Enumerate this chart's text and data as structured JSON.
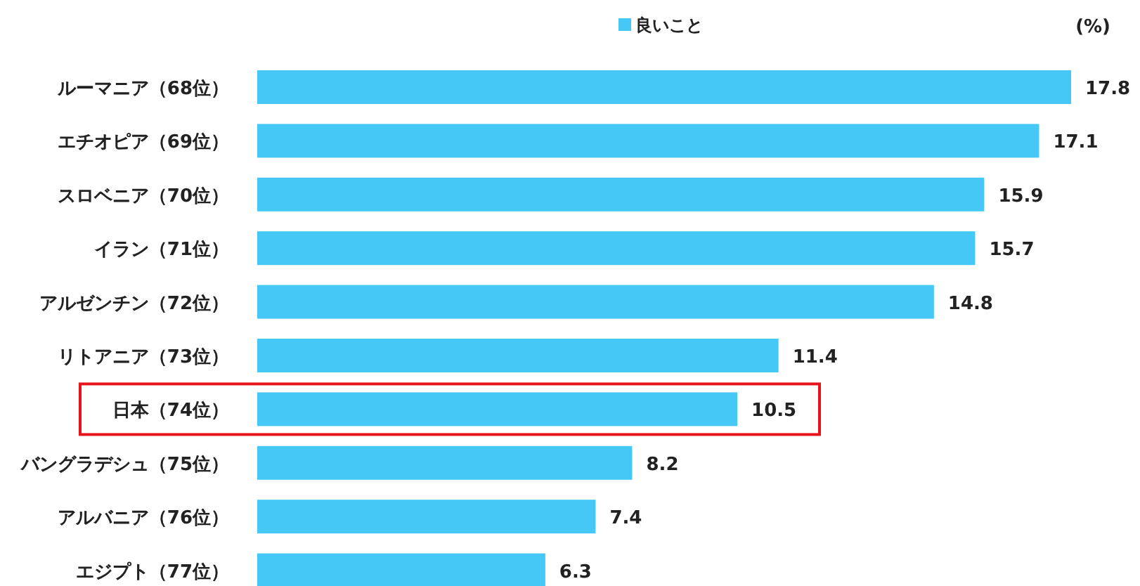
{
  "chart_data": {
    "type": "bar",
    "orientation": "horizontal",
    "categories": [
      "ルーマニア（68位）",
      "エチオピア（69位）",
      "スロベニア（70位）",
      "イラン（71位）",
      "アルゼンチン（72位）",
      "リトアニア（73位）",
      "日本（74位）",
      "バングラデシュ（75位）",
      "アルバニア（76位）",
      "エジプト（77位）"
    ],
    "series": [
      {
        "name": "良いこと",
        "color": "#45c8f6",
        "values": [
          17.8,
          17.1,
          15.9,
          15.7,
          14.8,
          11.4,
          10.5,
          8.2,
          7.4,
          6.3
        ]
      }
    ],
    "data_labels": true,
    "legend": "top",
    "annotations": [
      "(%)"
    ]
  }
}
